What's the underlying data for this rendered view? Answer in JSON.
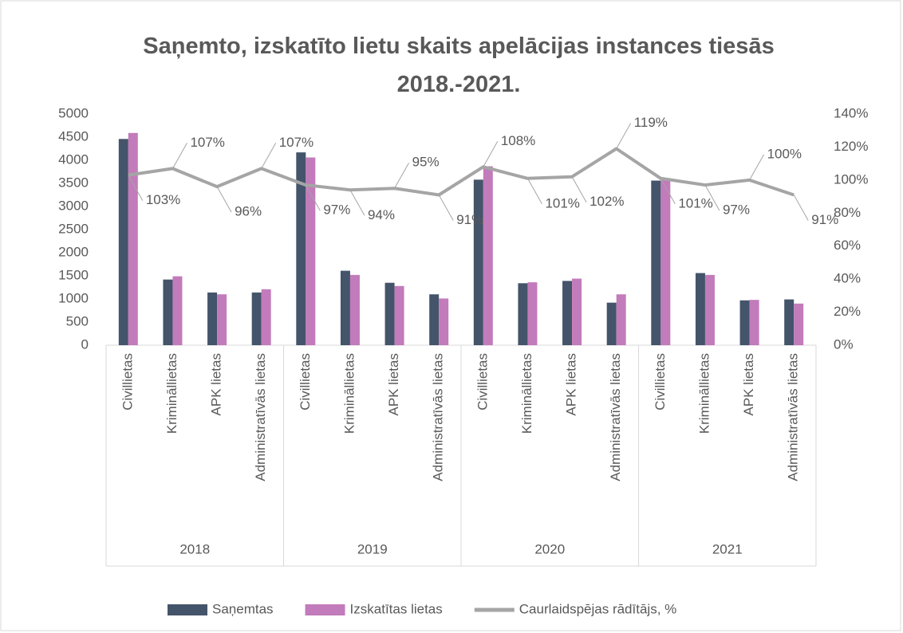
{
  "chart_data": {
    "type": "bar",
    "title": "Saņemto, izskatīto lietu skaits apelācijas instances tiesās 2018.-2021.",
    "categories": [
      "Civillietas",
      "Krimināllietas",
      "APK lietas",
      "Administratīvās lietas",
      "Civillietas",
      "Krimināllietas",
      "APK lietas",
      "Administratīvās lietas",
      "Civillietas",
      "Krimināllietas",
      "APK lietas",
      "Administratīvās lietas",
      "Civillietas",
      "Krimināllietas",
      "APK lietas",
      "Administratīvās lietas"
    ],
    "groups": [
      "2018",
      "2019",
      "2020",
      "2021"
    ],
    "series": [
      {
        "name": "Saņemtas",
        "color": "#44546a",
        "values": [
          4460,
          1420,
          1140,
          1140,
          4170,
          1610,
          1350,
          1100,
          3580,
          1340,
          1390,
          920,
          3560,
          1560,
          970,
          990
        ]
      },
      {
        "name": "Izskatītas lietas",
        "color": "#c27bbb",
        "values": [
          4590,
          1490,
          1100,
          1210,
          4060,
          1520,
          1280,
          1010,
          3870,
          1360,
          1440,
          1100,
          3600,
          1520,
          980,
          900
        ]
      },
      {
        "name": "Caurlaidspējas rādītājs, %",
        "color": "#a5a5a5",
        "axis": "y2",
        "type": "line",
        "values": [
          103,
          107,
          96,
          107,
          97,
          94,
          95,
          91,
          108,
          101,
          102,
          119,
          101,
          97,
          100,
          91
        ],
        "value_labels": [
          "103%",
          "107%",
          "96%",
          "107%",
          "97%",
          "94%",
          "95%",
          "91%",
          "108%",
          "101%",
          "102%",
          "119%",
          "101%",
          "97%",
          "100%",
          "91%"
        ]
      }
    ],
    "ylim": [
      0,
      5000
    ],
    "yticks": [
      0,
      500,
      1000,
      1500,
      2000,
      2500,
      3000,
      3500,
      4000,
      4500,
      5000
    ],
    "y2lim": [
      0,
      140
    ],
    "y2ticks": [
      {
        "value": 0,
        "label": "0%"
      },
      {
        "value": 20,
        "label": "20%"
      },
      {
        "value": 40,
        "label": "40%"
      },
      {
        "value": 60,
        "label": "60%"
      },
      {
        "value": 80,
        "label": "80%"
      },
      {
        "value": 100,
        "label": "100%"
      },
      {
        "value": 120,
        "label": "120%"
      },
      {
        "value": 140,
        "label": "140%"
      }
    ],
    "grid": false,
    "legend": "bottom"
  }
}
